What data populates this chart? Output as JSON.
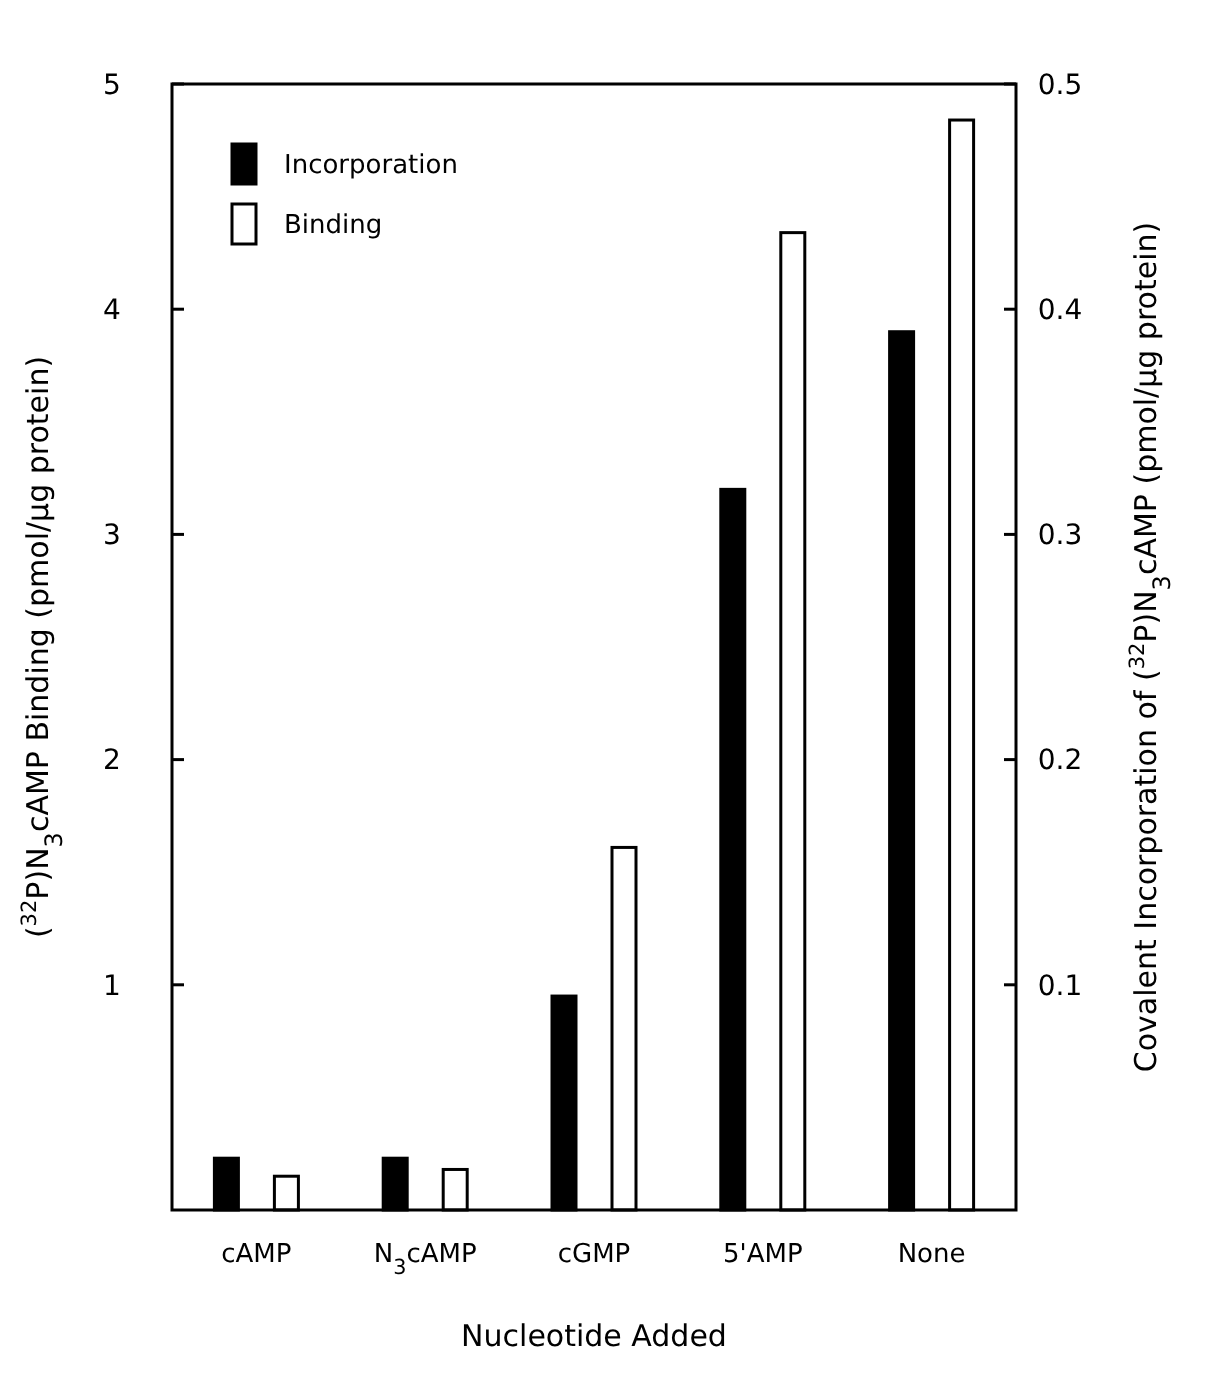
{
  "chart_data": {
    "type": "bar",
    "xlabel": "Nucleotide Added",
    "ylabel": "($^{32}$P)N$_{3}$cAMP Binding (pmol/μg protein)",
    "y2label": "Covalent  Incorporation of ($^{32}$P)N$_{3}$cAMP (pmol/μg protein)",
    "categories": [
      "cAMP",
      "N$_{3}$cAMP",
      "cGMP",
      "5'AMP",
      "None"
    ],
    "series": [
      {
        "name": "Incorporation",
        "color": "#000000",
        "axis": "y2",
        "values": [
          0.023,
          0.023,
          0.095,
          0.32,
          0.39
        ]
      },
      {
        "name": "Binding",
        "color": "#ffffff",
        "values": [
          0.15,
          0.18,
          1.61,
          4.34,
          4.84
        ]
      }
    ],
    "ylim": [
      0,
      5
    ],
    "yticks": [
      1,
      2,
      3,
      4,
      5
    ],
    "y2lim": [
      0,
      0.5
    ],
    "y2ticks": [
      0.1,
      0.2,
      0.3,
      0.4,
      0.5
    ],
    "legend": "top left",
    "grid": false
  }
}
